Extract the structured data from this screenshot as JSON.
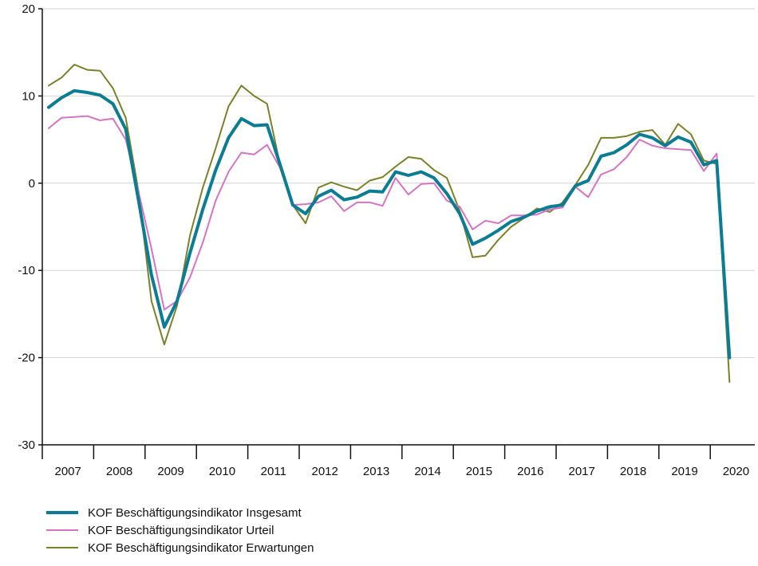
{
  "chart_data": {
    "type": "line",
    "title": "",
    "xlabel": "",
    "ylabel": "",
    "ylim": [
      -30,
      20
    ],
    "y_ticks": [
      20,
      10,
      0,
      -10,
      -20,
      -30
    ],
    "x_start_year": 2007,
    "quarters_per_year": 4,
    "year_labels": [
      "2007",
      "2008",
      "2009",
      "2010",
      "2011",
      "2012",
      "2013",
      "2014",
      "2015",
      "2016",
      "2017",
      "2018",
      "2019",
      "2020"
    ],
    "grid": "horizontal",
    "legend_position": "bottom-left",
    "series": [
      {
        "name": "KOF Beschäftigungsindikator Insgesamt",
        "color": "#0a7d94",
        "width": 4,
        "values": [
          8.7,
          9.8,
          10.6,
          10.4,
          10.1,
          9.1,
          6.2,
          -2.0,
          -10.5,
          -16.5,
          -13.5,
          -8.0,
          -3.0,
          1.5,
          5.2,
          7.4,
          6.6,
          6.7,
          2.2,
          -2.5,
          -3.5,
          -1.5,
          -0.8,
          -1.9,
          -1.6,
          -0.9,
          -1.0,
          1.3,
          0.9,
          1.3,
          0.6,
          -1.2,
          -3.5,
          -7.0,
          -6.3,
          -5.4,
          -4.4,
          -3.9,
          -3.2,
          -2.7,
          -2.5,
          -0.3,
          0.3,
          3.1,
          3.5,
          4.4,
          5.6,
          5.2,
          4.3,
          5.3,
          4.7,
          2.1,
          2.6,
          -20.0
        ]
      },
      {
        "name": "KOF Beschäftigungsindikator Urteil",
        "color": "#d873c4",
        "width": 2,
        "values": [
          6.3,
          7.5,
          7.6,
          7.7,
          7.2,
          7.4,
          5.0,
          -1.0,
          -7.5,
          -14.5,
          -13.5,
          -10.8,
          -6.8,
          -2.0,
          1.3,
          3.5,
          3.3,
          4.4,
          1.8,
          -2.5,
          -2.4,
          -2.2,
          -1.5,
          -3.2,
          -2.2,
          -2.2,
          -2.6,
          0.6,
          -1.3,
          -0.1,
          0.0,
          -2.0,
          -2.7,
          -5.3,
          -4.3,
          -4.6,
          -3.7,
          -3.7,
          -3.6,
          -3.0,
          -2.8,
          -0.4,
          -1.6,
          1.0,
          1.6,
          3.0,
          5.0,
          4.3,
          4.0,
          3.9,
          3.8,
          1.4,
          3.4,
          -19.8
        ]
      },
      {
        "name": "KOF Beschäftigungsindikator Erwartungen",
        "color": "#7a8228",
        "width": 2,
        "values": [
          11.2,
          12.1,
          13.6,
          13.0,
          12.9,
          10.9,
          7.5,
          -1.0,
          -13.5,
          -18.5,
          -14.0,
          -6.0,
          -0.5,
          4.0,
          8.8,
          11.2,
          10.0,
          9.1,
          2.2,
          -2.5,
          -4.6,
          -0.5,
          0.1,
          -0.4,
          -0.8,
          0.3,
          0.7,
          1.9,
          3.0,
          2.8,
          1.5,
          0.6,
          -3.2,
          -8.5,
          -8.3,
          -6.5,
          -5.0,
          -4.0,
          -2.9,
          -3.3,
          -2.2,
          -0.2,
          2.1,
          5.2,
          5.2,
          5.4,
          5.9,
          6.1,
          4.4,
          6.8,
          5.6,
          2.6,
          2.2,
          -22.8
        ]
      }
    ]
  }
}
